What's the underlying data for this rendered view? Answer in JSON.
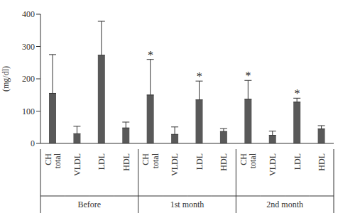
{
  "chart_data": {
    "type": "bar",
    "y_label": "(mg/dl)",
    "categories": [
      "CH total",
      "VLDL",
      "LDL",
      "HDL",
      "CH total",
      "VLDL",
      "LDL",
      "HDL",
      "CH total",
      "VLDL",
      "LDL",
      "HDL"
    ],
    "groups": [
      "Before",
      "1st month",
      "2nd month"
    ],
    "values": [
      155,
      30,
      273,
      48,
      150,
      28,
      135,
      37,
      137,
      25,
      128,
      45
    ],
    "errors": [
      120,
      23,
      105,
      18,
      110,
      23,
      58,
      9,
      58,
      13,
      12,
      10
    ],
    "annotations": [
      {
        "text": "*",
        "index": 4
      },
      {
        "text": "*",
        "index": 6
      },
      {
        "text": "*",
        "index": 8
      },
      {
        "text": "*",
        "index": 10
      }
    ],
    "color": "#595959",
    "ylim": [
      0,
      400
    ],
    "yticks": [
      0,
      100,
      200,
      300,
      400
    ]
  }
}
